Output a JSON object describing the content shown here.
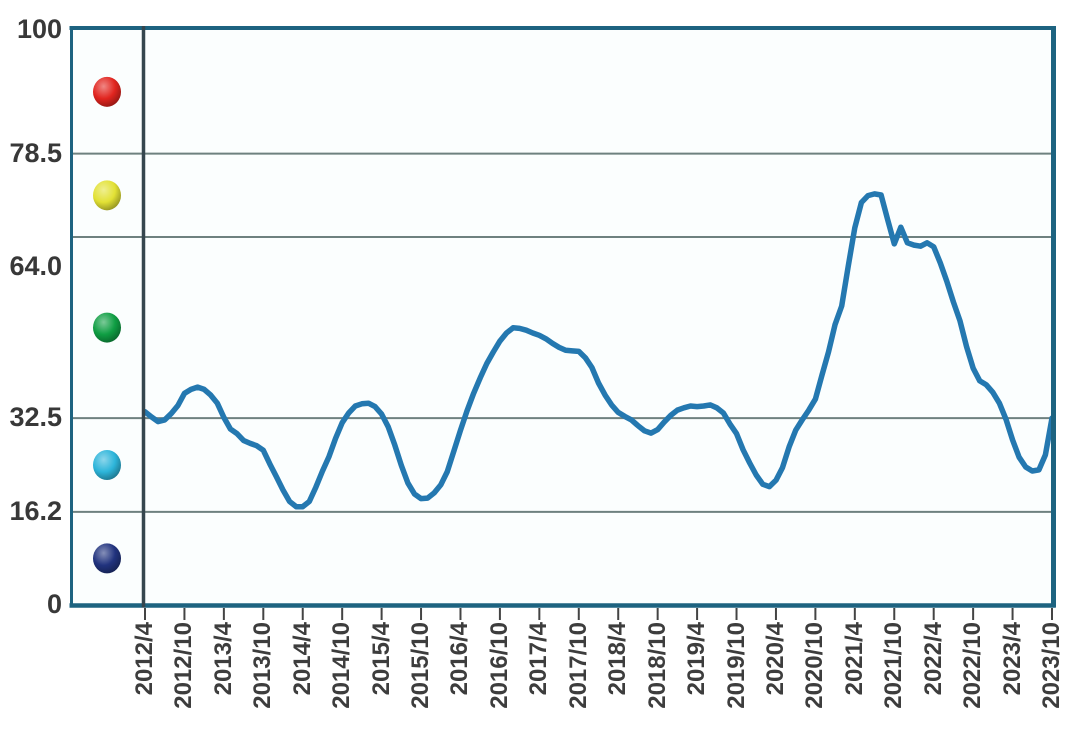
{
  "chart_data": {
    "type": "line",
    "title": "",
    "ylim": [
      0,
      100
    ],
    "grid": true,
    "legend_position": "left-strip",
    "yticks": [
      {
        "label": "100",
        "value": 100
      },
      {
        "label": "78.5",
        "value": 78.5
      },
      {
        "label": "64.0",
        "value": 64.0
      },
      {
        "label": "32.5",
        "value": 32.5
      },
      {
        "label": "16.2",
        "value": 16.2
      },
      {
        "label": "0",
        "value": 0
      }
    ],
    "gridline_values": [
      78.5,
      64.0,
      32.5,
      16.2
    ],
    "xtick_labels": [
      "2012/4",
      "2012/10",
      "2013/4",
      "2013/10",
      "2014/4",
      "2014/10",
      "2015/4",
      "2015/10",
      "2016/4",
      "2016/10",
      "2017/4",
      "2017/10",
      "2018/4",
      "2018/10",
      "2019/4",
      "2019/10",
      "2020/4",
      "2020/10",
      "2021/4",
      "2021/10",
      "2022/4",
      "2022/10",
      "2023/4",
      "2023/10"
    ],
    "x_monthly_start": "2012/4",
    "x_monthly_end": "2023/10",
    "x_frequency": "monthly",
    "series": [
      {
        "name": "index-line",
        "color": "#2478b0",
        "values": [
          33.6,
          32.7,
          31.9,
          32.2,
          33.3,
          34.7,
          36.8,
          37.5,
          37.9,
          37.5,
          36.5,
          35.1,
          32.6,
          30.6,
          29.8,
          28.6,
          28.1,
          27.7,
          26.9,
          24.5,
          22.3,
          20.0,
          18.0,
          17.1,
          17.1,
          18.0,
          20.5,
          23.3,
          25.8,
          29.0,
          31.7,
          33.4,
          34.6,
          35.0,
          35.1,
          34.5,
          33.2,
          31.0,
          27.8,
          24.3,
          21.2,
          19.3,
          18.5,
          18.6,
          19.5,
          20.9,
          23.2,
          26.8,
          30.4,
          33.8,
          36.8,
          39.5,
          42.0,
          44.0,
          45.9,
          47.3,
          48.2,
          48.1,
          47.8,
          47.3,
          46.9,
          46.3,
          45.5,
          44.8,
          44.3,
          44.2,
          44.1,
          43.0,
          41.3,
          38.6,
          36.5,
          34.8,
          33.5,
          32.8,
          32.2,
          31.2,
          30.3,
          29.9,
          30.5,
          31.8,
          33.0,
          33.9,
          34.3,
          34.6,
          34.5,
          34.6,
          34.8,
          34.3,
          33.4,
          31.5,
          29.8,
          27.0,
          24.7,
          22.6,
          21.0,
          20.6,
          21.7,
          23.9,
          27.5,
          30.4,
          32.2,
          33.9,
          35.8,
          40.0,
          44.0,
          48.8,
          52.0,
          59.0,
          65.6,
          70.0,
          71.2,
          71.5,
          71.3,
          67.0,
          62.8,
          65.7,
          63.0,
          62.6,
          62.4,
          63.0,
          62.3,
          59.5,
          56.3,
          52.7,
          49.4,
          44.9,
          41.2,
          39.0,
          38.3,
          37.0,
          35.1,
          32.3,
          28.7,
          25.7,
          24.0,
          23.3,
          23.5,
          26.1,
          32.5
        ]
      }
    ],
    "zone_indicators": [
      {
        "name": "red-ball",
        "color": "#e1251f",
        "range": [
          78.5,
          100
        ]
      },
      {
        "name": "yellow-ball",
        "color": "#e2e135",
        "range": [
          64.0,
          78.5
        ]
      },
      {
        "name": "green-ball",
        "color": "#0f9e43",
        "range": [
          32.5,
          64.0
        ]
      },
      {
        "name": "cyan-ball",
        "color": "#2db5da",
        "range": [
          16.2,
          32.5
        ]
      },
      {
        "name": "blue-ball",
        "color": "#21337e",
        "range": [
          0,
          16.2
        ]
      }
    ],
    "colors": {
      "axis_border": "#1d6380",
      "strip_divider": "#35464e",
      "gridline": "#6e817f",
      "tick": "#444444",
      "label_text": "#3d3d3d",
      "plot_background": "#fbfefe"
    }
  }
}
